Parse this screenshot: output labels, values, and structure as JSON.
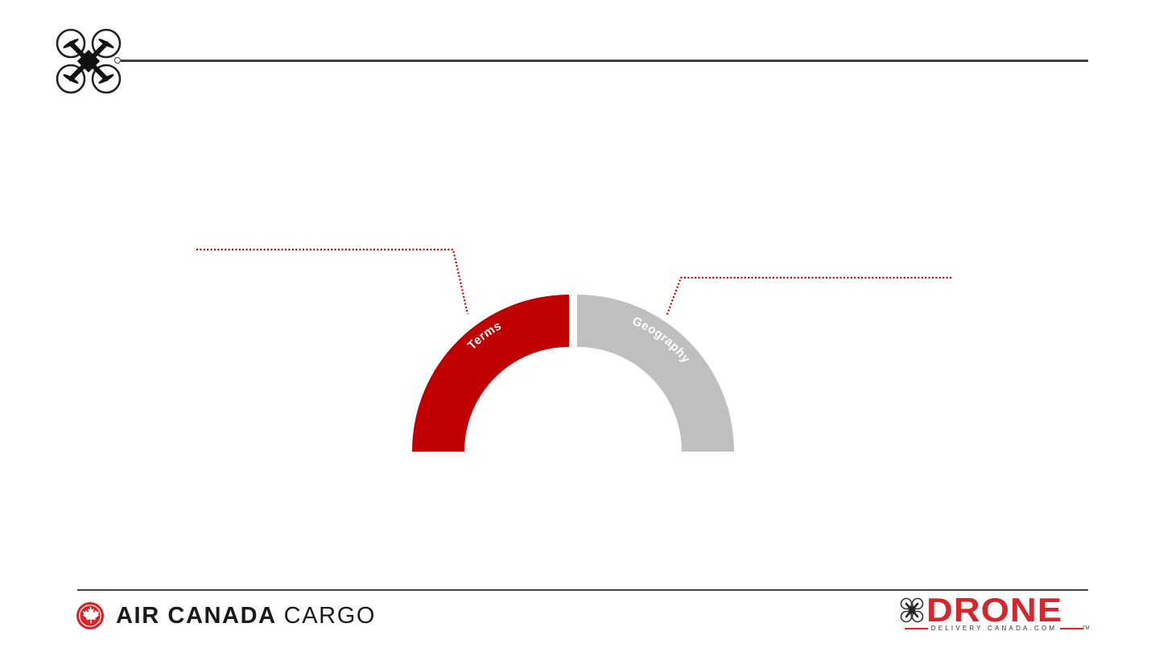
{
  "header": {
    "logo_icon": "quadcopter-drone-icon"
  },
  "diagram": {
    "segments": [
      {
        "label": "Terms",
        "color": "#C00000"
      },
      {
        "label": "Geography",
        "color": "#BFBFBF"
      }
    ],
    "callout_color": "#C00000"
  },
  "footer": {
    "left_logo": {
      "icon": "maple-leaf-roundel-icon",
      "brand": "AIR CANADA",
      "suffix": "CARGO",
      "color": "#D6262C"
    },
    "right_logo": {
      "icon": "drone-icon",
      "brand": "DRONE",
      "tagline": "DELIVERY CANADA.COM",
      "trademark": "TM",
      "color": "#D6262C"
    }
  }
}
